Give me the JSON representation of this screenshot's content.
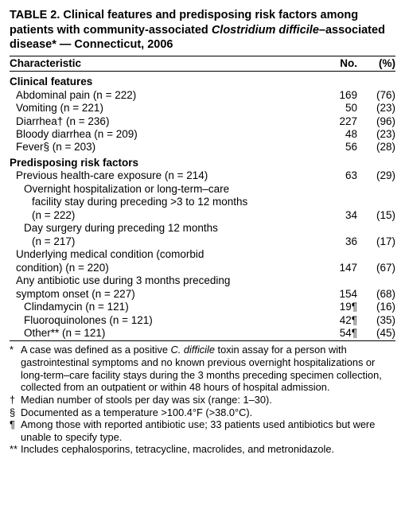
{
  "title_prefix": "TABLE 2. Clinical features and predisposing risk factors among patients with community-associated ",
  "title_italic": "Clostridium difficile",
  "title_suffix": "–associated disease* — Connecticut, 2006",
  "headers": {
    "char": "Characteristic",
    "no": "No.",
    "pct": "(%)"
  },
  "sections": [
    {
      "label": "Clinical features",
      "rows": [
        {
          "label": "Abdominal pain (n = 222)",
          "ind": 1,
          "no": "169",
          "pct": "(76)"
        },
        {
          "label": "Vomiting (n = 221)",
          "ind": 1,
          "no": "50",
          "pct": "(23)"
        },
        {
          "label": "Diarrhea† (n = 236)",
          "ind": 1,
          "no": "227",
          "pct": "(96)"
        },
        {
          "label": "Bloody diarrhea (n = 209)",
          "ind": 1,
          "no": "48",
          "pct": "(23)"
        },
        {
          "label": "Fever§ (n = 203)",
          "ind": 1,
          "no": "56",
          "pct": "(28)"
        }
      ]
    },
    {
      "label": "Predisposing risk factors",
      "rows": [
        {
          "label": "Previous health-care exposure (n = 214)",
          "ind": 1,
          "no": "63",
          "pct": "(29)"
        },
        {
          "label": "Overnight hospitalization or long-term–care",
          "ind": 2,
          "no": "",
          "pct": ""
        },
        {
          "label": "facility stay during preceding >3 to 12 months",
          "ind": 3,
          "no": "",
          "pct": ""
        },
        {
          "label": "(n = 222)",
          "ind": 3,
          "no": "34",
          "pct": "(15)"
        },
        {
          "label": "Day surgery during preceding 12 months",
          "ind": 2,
          "no": "",
          "pct": ""
        },
        {
          "label": "(n = 217)",
          "ind": 3,
          "no": "36",
          "pct": "(17)"
        },
        {
          "label": "Underlying medical condition (comorbid",
          "ind": 1,
          "no": "",
          "pct": ""
        },
        {
          "label": "condition) (n = 220)",
          "ind": 1,
          "no": "147",
          "pct": "(67)"
        },
        {
          "label": "Any antibiotic use during 3 months preceding",
          "ind": 1,
          "no": "",
          "pct": ""
        },
        {
          "label": "symptom onset (n = 227)",
          "ind": 1,
          "no": "154",
          "pct": "(68)"
        },
        {
          "label": "Clindamycin (n = 121)",
          "ind": 2,
          "no": "19¶",
          "pct": "(16)"
        },
        {
          "label": "Fluoroquinolones (n = 121)",
          "ind": 2,
          "no": "42¶",
          "pct": "(35)"
        },
        {
          "label": "Other** (n = 121)",
          "ind": 2,
          "no": "54¶",
          "pct": "(45)"
        }
      ]
    }
  ],
  "footnotes": [
    {
      "sym": "*",
      "text_italic_prefix": "A case was defined as a positive ",
      "text_italic": "C. difficile",
      "text_italic_suffix": " toxin assay for a person with gastrointestinal symptoms and no known previous overnight hospitalizations or long-term–care facility stays during the 3 months preceding specimen collection, collected from an outpatient or within 48 hours of hospital admission."
    },
    {
      "sym": "†",
      "text": "Median number of stools per day was six (range: 1–30)."
    },
    {
      "sym": "§",
      "text": "Documented as a temperature >100.4°F (>38.0°C)."
    },
    {
      "sym": "¶",
      "text": "Among those with reported antibiotic use; 33 patients used antibiotics but were unable to specify type."
    },
    {
      "sym": "**",
      "text": "Includes cephalosporins, tetracycline, macrolides, and metronidazole."
    }
  ]
}
